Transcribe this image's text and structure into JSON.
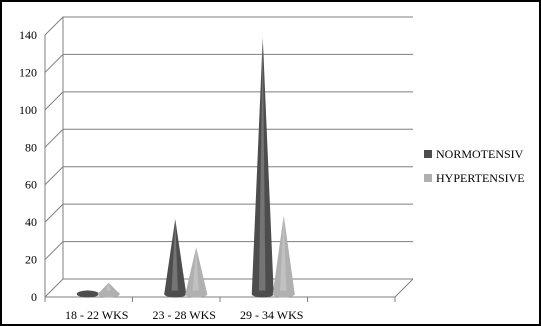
{
  "chart_data": {
    "type": "cone-bar",
    "categories": [
      "18 - 22 WKS",
      "23 - 28 WKS",
      "29 - 34 WKS",
      ""
    ],
    "series": [
      {
        "name": "NORMOTENSIV",
        "values": [
          2,
          40,
          137,
          0
        ],
        "color": "#4d4d4d"
      },
      {
        "name": "HYPERTENSIVE",
        "values": [
          6,
          25,
          42,
          0
        ],
        "color": "#b0b0b0"
      }
    ],
    "ylim": [
      0,
      140
    ],
    "yticks": [
      0,
      20,
      40,
      60,
      80,
      100,
      120,
      140
    ],
    "grid": true,
    "legend": "right"
  }
}
